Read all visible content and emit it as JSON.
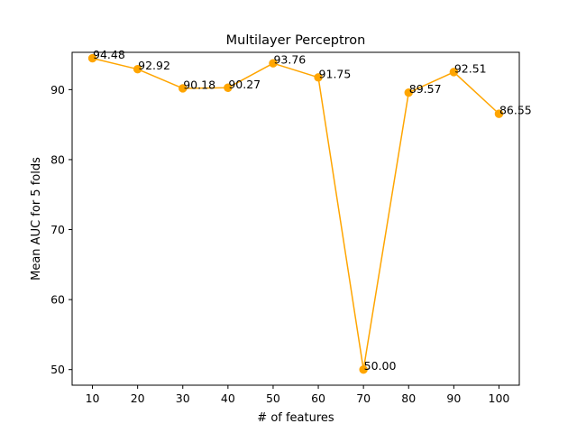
{
  "chart_data": {
    "type": "line",
    "title": "Multilayer Perceptron",
    "xlabel": "# of features",
    "ylabel": "Mean AUC for 5 folds",
    "x": [
      10,
      20,
      30,
      40,
      50,
      60,
      70,
      80,
      90,
      100
    ],
    "x_tick_labels": [
      "10",
      "20",
      "30",
      "40",
      "50",
      "60",
      "70",
      "80",
      "90",
      "100"
    ],
    "y_ticks": [
      50,
      60,
      70,
      80,
      90
    ],
    "y_tick_labels": [
      "50",
      "60",
      "70",
      "80",
      "90"
    ],
    "xlim": [
      5.5,
      104.5
    ],
    "ylim": [
      47.77,
      95.33
    ],
    "grid": false,
    "series": [
      {
        "values": [
          94.48,
          92.92,
          90.18,
          90.27,
          93.76,
          91.75,
          50.0,
          89.57,
          92.51,
          86.55
        ],
        "labels": [
          "94.48",
          "92.92",
          "90.18",
          "90.27",
          "93.76",
          "91.75",
          "50.00",
          "89.57",
          "92.51",
          "86.55"
        ],
        "color": "#ffa500",
        "marker": "circle"
      }
    ]
  }
}
